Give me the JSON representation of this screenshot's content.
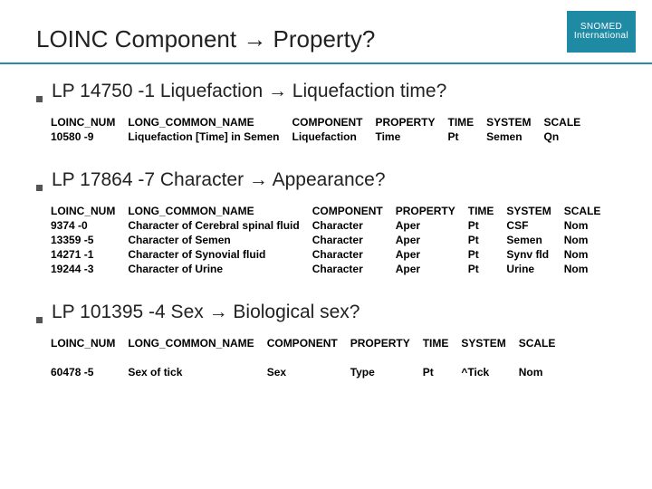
{
  "logo": {
    "line1": "SNOMED",
    "line2": "International"
  },
  "title_parts": {
    "a": "LOINC Component ",
    "arrow": "→",
    "b": " Property?"
  },
  "sections": [
    {
      "heading": {
        "a": "LP 14750 -1 Liquefaction ",
        "arrow": "→",
        "b": " Liquefaction time?"
      },
      "columns": [
        "LOINC_NUM",
        "LONG_COMMON_NAME",
        "COMPONENT",
        "PROPERTY",
        "TIME",
        "SYSTEM",
        "SCALE"
      ],
      "rows": [
        [
          "10580 -9",
          "Liquefaction [Time] in Semen",
          "Liquefaction",
          "Time",
          "Pt",
          "Semen",
          "Qn"
        ]
      ]
    },
    {
      "heading": {
        "a": "LP 17864 -7 Character ",
        "arrow": "→",
        "b": " Appearance?"
      },
      "columns": [
        "LOINC_NUM",
        "LONG_COMMON_NAME",
        "COMPONENT",
        "PROPERTY",
        "TIME",
        "SYSTEM",
        "SCALE"
      ],
      "rows": [
        [
          "9374 -0",
          "Character of Cerebral spinal fluid",
          "Character",
          "Aper",
          "Pt",
          "CSF",
          "Nom"
        ],
        [
          "13359 -5",
          "Character of Semen",
          "Character",
          "Aper",
          "Pt",
          "Semen",
          "Nom"
        ],
        [
          "14271 -1",
          "Character of Synovial fluid",
          "Character",
          "Aper",
          "Pt",
          "Synv fld",
          "Nom"
        ],
        [
          "19244 -3",
          "Character of Urine",
          "Character",
          "Aper",
          "Pt",
          "Urine",
          "Nom"
        ]
      ]
    },
    {
      "heading": {
        "a": "LP 101395 -4 Sex ",
        "arrow": "→",
        "b": " Biological sex?"
      },
      "columns": [
        "LOINC_NUM",
        "LONG_COMMON_NAME",
        "COMPONENT",
        "PROPERTY",
        "TIME",
        "SYSTEM",
        "SCALE"
      ],
      "rows": [
        [
          "60478 -5",
          "Sex of tick",
          "Sex",
          "Type",
          "Pt",
          "^Tick",
          "Nom"
        ]
      ],
      "gap_after_header": true
    }
  ]
}
